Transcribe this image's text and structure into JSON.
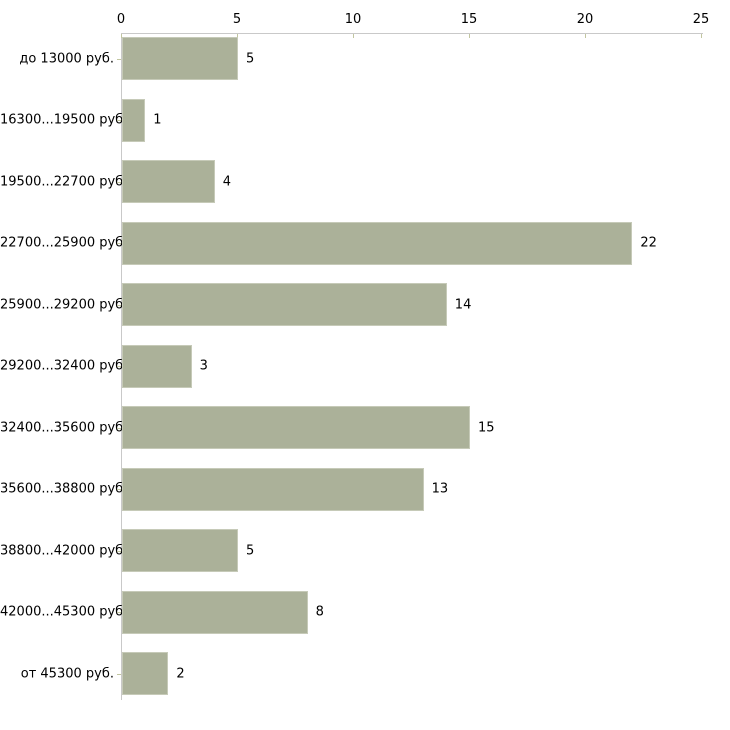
{
  "chart_data": {
    "type": "bar",
    "orientation": "horizontal",
    "title": "",
    "xlabel": "",
    "ylabel": "",
    "categories": [
      "до 13000 руб.",
      "16300...19500 руб.",
      "19500...22700 руб.",
      "22700...25900 руб.",
      "25900...29200 руб.",
      "29200...32400 руб.",
      "32400...35600 руб.",
      "35600...38800 руб.",
      "38800...42000 руб.",
      "42000...45300 руб.",
      "от 45300 руб."
    ],
    "values": [
      5,
      1,
      4,
      22,
      14,
      3,
      15,
      13,
      5,
      8,
      2
    ],
    "value_labels": [
      "5",
      "1",
      "4",
      "22",
      "14",
      "3",
      "15",
      "13",
      "5",
      "8",
      "2"
    ],
    "x_axis": {
      "position": "top",
      "min": 0,
      "max": 25,
      "ticks": [
        0,
        5,
        10,
        15,
        20,
        25
      ]
    },
    "grid": "off",
    "legend": "none",
    "colors": {
      "bar_fill": "#abb199",
      "bar_border": "#c6cab8",
      "axis_line": "#c9c9c9",
      "tick_mark": "#c2c6a0",
      "text": "#000000",
      "background": "#ffffff"
    }
  }
}
